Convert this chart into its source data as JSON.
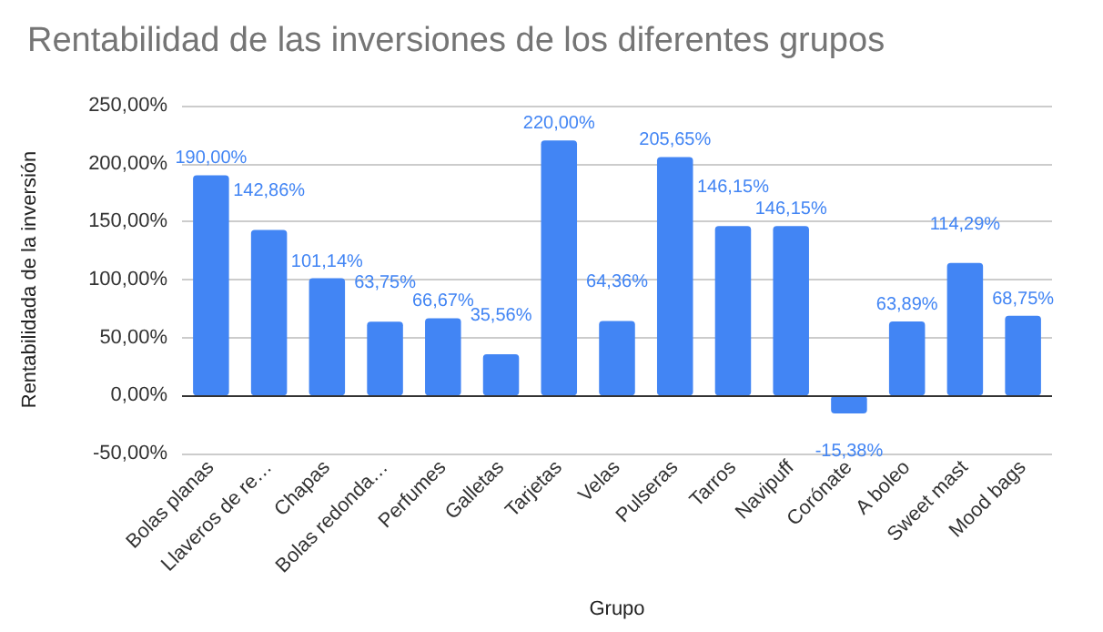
{
  "chart_data": {
    "type": "bar",
    "title": "Rentabilidad de las inversiones de los diferentes grupos",
    "xlabel": "Grupo",
    "ylabel": "Rentabilidada de la inversión",
    "categories": [
      "Bolas planas",
      "Llaveros de re…",
      "Chapas",
      "Bolas redonda…",
      "Perfumes",
      "Galletas",
      "Tarjetas",
      "Velas",
      "Pulseras",
      "Tarros",
      "Navipuff",
      "Corónate",
      "A boleo",
      "Sweet mast",
      "Mood bags"
    ],
    "values": [
      190.0,
      142.86,
      101.14,
      63.75,
      66.67,
      35.56,
      220.0,
      64.36,
      205.65,
      146.15,
      146.15,
      -15.38,
      63.89,
      114.29,
      68.75
    ],
    "value_labels": [
      "190,00%",
      "142,86%",
      "101,14%",
      "63,75%",
      "66,67%",
      "35,56%",
      "220,00%",
      "64,36%",
      "205,65%",
      "146,15%",
      "146,15%",
      "-15,38%",
      "63,89%",
      "114,29%",
      "68,75%"
    ],
    "color": "#4285f4",
    "ylim": [
      -50,
      250
    ],
    "yticks": [
      {
        "value": -50,
        "label": "-50,00%"
      },
      {
        "value": 0,
        "label": "0,00%"
      },
      {
        "value": 50,
        "label": "50,00%"
      },
      {
        "value": 100,
        "label": "100,00%"
      },
      {
        "value": 150,
        "label": "150,00%"
      },
      {
        "value": 200,
        "label": "200,00%"
      },
      {
        "value": 250,
        "label": "250,00%"
      }
    ],
    "grid": "y"
  }
}
